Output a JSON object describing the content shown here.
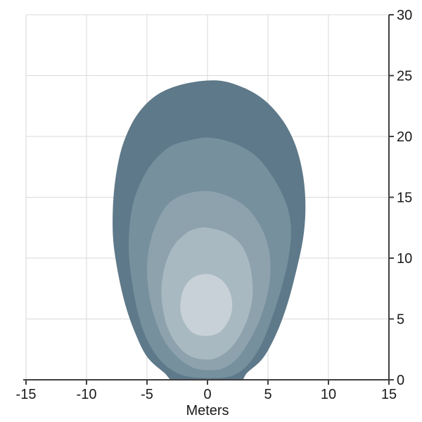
{
  "figure": {
    "background_color": "#ffffff",
    "grid_color": "#d9d9d9",
    "axis_color": "#404040",
    "tick_label_color": "#1a1a1a"
  },
  "chart_data": {
    "type": "filled_contour_density",
    "title": "",
    "xlabel": "Meters",
    "ylabel": "",
    "xlim": [
      -15,
      15
    ],
    "ylim": [
      0,
      30
    ],
    "x_ticks": [
      -15,
      -10,
      -5,
      0,
      5,
      10,
      15
    ],
    "y_ticks": [
      0,
      5,
      10,
      15,
      20,
      25,
      30
    ],
    "y_axis_side": "right",
    "grid": true,
    "legend": false,
    "peak_location_m": [
      -0.1,
      6.2
    ],
    "levels": [
      {
        "level": 1,
        "fill": "#5e7989",
        "polygon": [
          [
            0.8,
            24.6
          ],
          [
            3.0,
            24.0
          ],
          [
            4.8,
            22.9
          ],
          [
            6.3,
            21.2
          ],
          [
            7.3,
            19.2
          ],
          [
            7.9,
            16.8
          ],
          [
            8.1,
            14.2
          ],
          [
            7.9,
            11.6
          ],
          [
            7.3,
            8.8
          ],
          [
            6.6,
            6.2
          ],
          [
            5.7,
            3.8
          ],
          [
            4.6,
            1.8
          ],
          [
            3.3,
            0.6
          ],
          [
            2.2,
            -0.4
          ],
          [
            -2.2,
            -0.4
          ],
          [
            -3.6,
            0.6
          ],
          [
            -5.0,
            1.9
          ],
          [
            -6.0,
            3.9
          ],
          [
            -6.8,
            6.2
          ],
          [
            -7.4,
            8.8
          ],
          [
            -7.8,
            11.6
          ],
          [
            -7.8,
            14.5
          ],
          [
            -7.5,
            17.2
          ],
          [
            -6.9,
            19.6
          ],
          [
            -5.8,
            21.8
          ],
          [
            -4.2,
            23.4
          ],
          [
            -2.0,
            24.3
          ]
        ]
      },
      {
        "level": 2,
        "fill": "#76909e",
        "polygon": [
          [
            0.2,
            19.9
          ],
          [
            2.3,
            19.4
          ],
          [
            4.1,
            18.3
          ],
          [
            5.5,
            16.5
          ],
          [
            6.5,
            14.5
          ],
          [
            6.9,
            12.5
          ],
          [
            6.7,
            10.0
          ],
          [
            6.1,
            7.5
          ],
          [
            5.3,
            5.0
          ],
          [
            4.4,
            2.8
          ],
          [
            3.3,
            1.2
          ],
          [
            2.2,
            0.4
          ],
          [
            1.0,
            0.15
          ],
          [
            -1.2,
            0.2
          ],
          [
            -2.6,
            0.6
          ],
          [
            -3.9,
            1.6
          ],
          [
            -5.0,
            3.3
          ],
          [
            -5.7,
            5.3
          ],
          [
            -6.2,
            7.8
          ],
          [
            -6.5,
            10.4
          ],
          [
            -6.4,
            13.0
          ],
          [
            -5.9,
            15.3
          ],
          [
            -4.8,
            17.5
          ],
          [
            -3.2,
            19.1
          ],
          [
            -1.4,
            19.7
          ]
        ]
      },
      {
        "level": 3,
        "fill": "#8ea2ad",
        "polygon": [
          [
            0.1,
            15.5
          ],
          [
            1.9,
            15.0
          ],
          [
            3.4,
            14.0
          ],
          [
            4.5,
            12.4
          ],
          [
            5.1,
            10.6
          ],
          [
            5.2,
            8.7
          ],
          [
            4.9,
            6.8
          ],
          [
            4.3,
            4.9
          ],
          [
            3.4,
            3.1
          ],
          [
            2.4,
            1.7
          ],
          [
            1.3,
            0.95
          ],
          [
            0.1,
            0.8
          ],
          [
            -1.2,
            1.0
          ],
          [
            -2.4,
            1.8
          ],
          [
            -3.5,
            3.1
          ],
          [
            -4.3,
            4.9
          ],
          [
            -4.8,
            6.9
          ],
          [
            -5.0,
            9.0
          ],
          [
            -4.8,
            11.0
          ],
          [
            -4.2,
            12.9
          ],
          [
            -3.2,
            14.5
          ],
          [
            -1.7,
            15.3
          ]
        ]
      },
      {
        "level": 4,
        "fill": "#a8b9c1",
        "polygon": [
          [
            0.0,
            12.5
          ],
          [
            1.5,
            12.1
          ],
          [
            2.7,
            11.2
          ],
          [
            3.4,
            9.8
          ],
          [
            3.7,
            8.2
          ],
          [
            3.7,
            6.6
          ],
          [
            3.3,
            5.0
          ],
          [
            2.6,
            3.5
          ],
          [
            1.7,
            2.4
          ],
          [
            0.6,
            1.75
          ],
          [
            -0.6,
            1.7
          ],
          [
            -1.7,
            2.1
          ],
          [
            -2.6,
            3.0
          ],
          [
            -3.3,
            4.3
          ],
          [
            -3.7,
            5.9
          ],
          [
            -3.8,
            7.6
          ],
          [
            -3.5,
            9.4
          ],
          [
            -2.8,
            11.0
          ],
          [
            -1.7,
            12.1
          ],
          [
            -0.8,
            12.45
          ]
        ]
      },
      {
        "level": 5,
        "fill": "#c7d1d7",
        "polygon": [
          [
            -0.1,
            8.7
          ],
          [
            0.9,
            8.4
          ],
          [
            1.6,
            7.7
          ],
          [
            2.0,
            6.7
          ],
          [
            2.0,
            5.6
          ],
          [
            1.6,
            4.6
          ],
          [
            0.9,
            3.85
          ],
          [
            -0.1,
            3.6
          ],
          [
            -1.1,
            3.8
          ],
          [
            -1.8,
            4.5
          ],
          [
            -2.2,
            5.5
          ],
          [
            -2.2,
            6.6
          ],
          [
            -1.9,
            7.6
          ],
          [
            -1.2,
            8.4
          ]
        ]
      }
    ]
  }
}
